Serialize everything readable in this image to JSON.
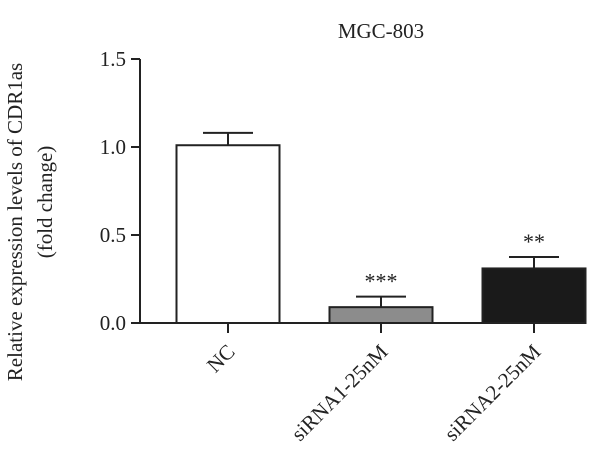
{
  "chart_data": {
    "type": "bar",
    "title": "MGC-803",
    "ylabel_line1": "Relative expression levels of CDR1as",
    "ylabel_line2": "(fold change)",
    "xlabel": "",
    "categories": [
      "NC",
      "siRNA1-25nM",
      "siRNA2-25nM"
    ],
    "values": [
      1.01,
      0.09,
      0.31
    ],
    "errors": [
      0.07,
      0.06,
      0.065
    ],
    "significance": [
      "",
      "***",
      "**"
    ],
    "bar_colors": [
      "#ffffff",
      "#8c8c8c",
      "#1a1a1a"
    ],
    "ylim": [
      0,
      1.5
    ],
    "yticks": [
      0,
      0.5,
      1.0,
      1.5
    ],
    "ytick_labels": [
      "0.0",
      "0.5",
      "1.0",
      "1.5"
    ],
    "grid": false,
    "legend": "none"
  }
}
